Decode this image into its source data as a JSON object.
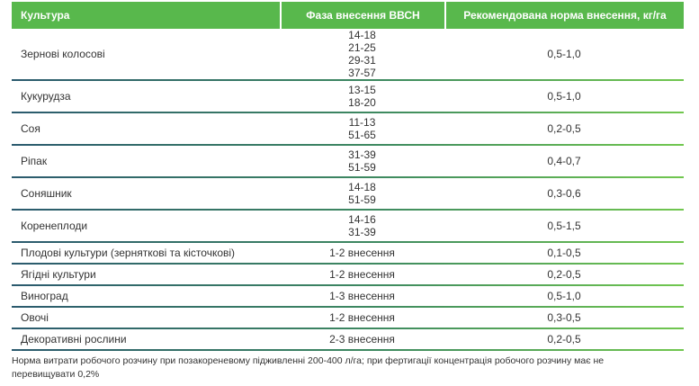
{
  "colors": {
    "header_bg": "#58b84c",
    "header_text": "#ffffff",
    "sep_start": "#2b5a6e",
    "sep_mid": "#3e8a60",
    "sep_end": "#71c74f",
    "body_text": "#333333",
    "page_bg": "#ffffff"
  },
  "table": {
    "headers": [
      "Культура",
      "Фаза внесення ВВСН",
      "Рекомендована норма внесення, кг/га"
    ],
    "rows": [
      {
        "crop": "Зернові колосові",
        "phase": "14-18\n21-25\n29-31\n37-57",
        "rate": "0,5-1,0"
      },
      {
        "crop": "Кукурудза",
        "phase": "13-15\n18-20",
        "rate": "0,5-1,0"
      },
      {
        "crop": "Соя",
        "phase": "11-13\n51-65",
        "rate": "0,2-0,5"
      },
      {
        "crop": "Ріпак",
        "phase": "31-39\n51-59",
        "rate": "0,4-0,7"
      },
      {
        "crop": "Соняшник",
        "phase": "14-18\n51-59",
        "rate": "0,3-0,6"
      },
      {
        "crop": "Коренеплоди",
        "phase": "14-16\n31-39",
        "rate": "0,5-1,5"
      },
      {
        "crop": "Плодові культури (зерняткові та кісточкові)",
        "phase": "1-2 внесення",
        "rate": "0,1-0,5"
      },
      {
        "crop": "Ягідні культури",
        "phase": "1-2 внесення",
        "rate": "0,2-0,5"
      },
      {
        "crop": "Виноград",
        "phase": "1-3 внесення",
        "rate": "0,5-1,0"
      },
      {
        "crop": "Овочі",
        "phase": "1-2 внесення",
        "rate": "0,3-0,5"
      },
      {
        "crop": "Декоративні рослини",
        "phase": "2-3 внесення",
        "rate": "0,2-0,5"
      }
    ],
    "footnote": "Норма витрати робочого розчину при позакореневому підживленні 200-400 л/га; при фертигації концентрація робочого розчину має не перевищувати 0,2%"
  }
}
